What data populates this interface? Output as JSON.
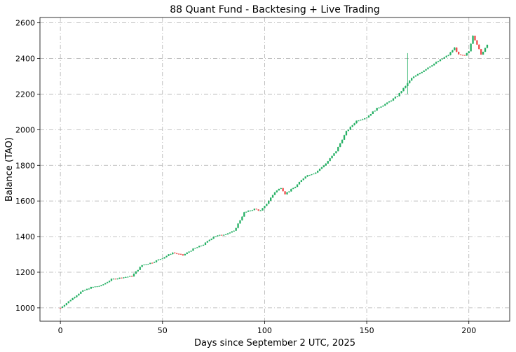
{
  "chart_data": {
    "type": "candlestick",
    "title": "88 Quant Fund - Backtesing + Live Trading",
    "xlabel": "Days since September 2 UTC, 2025",
    "ylabel": "Balance (TAO)",
    "xlim": [
      -10,
      220
    ],
    "ylim": [
      925,
      2630
    ],
    "xticks": [
      0,
      50,
      100,
      150,
      200
    ],
    "yticks": [
      1000,
      1200,
      1400,
      1600,
      1800,
      2000,
      2200,
      2400,
      2600
    ],
    "grid": true,
    "colors": {
      "up": "#26b065",
      "down": "#ef4b4b"
    },
    "x": [
      0,
      5,
      10,
      15,
      20,
      25,
      30,
      35,
      40,
      45,
      50,
      55,
      60,
      65,
      70,
      75,
      80,
      85,
      90,
      95,
      98,
      100,
      105,
      108,
      110,
      115,
      120,
      125,
      130,
      135,
      140,
      145,
      150,
      155,
      160,
      165,
      170,
      172,
      175,
      180,
      185,
      190,
      193,
      195,
      198,
      200,
      202,
      204,
      206,
      209
    ],
    "close": [
      1000,
      1045,
      1090,
      1115,
      1125,
      1160,
      1170,
      1178,
      1240,
      1255,
      1280,
      1310,
      1295,
      1330,
      1355,
      1400,
      1412,
      1430,
      1535,
      1555,
      1545,
      1570,
      1650,
      1675,
      1640,
      1680,
      1740,
      1760,
      1810,
      1880,
      1990,
      2050,
      2070,
      2120,
      2150,
      2190,
      2260,
      2290,
      2310,
      2350,
      2385,
      2420,
      2460,
      2420,
      2415,
      2440,
      2530,
      2480,
      2420,
      2480
    ]
  }
}
